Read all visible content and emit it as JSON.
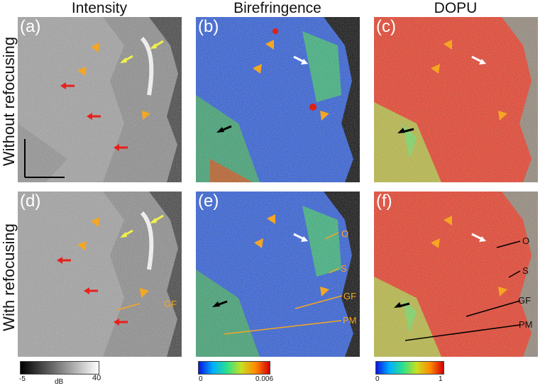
{
  "columns": [
    "Intensity",
    "Birefringence",
    "DOPU"
  ],
  "rows": [
    "Without refocusing",
    "With refocusing"
  ],
  "panels": [
    "(a)",
    "(b)",
    "(c)",
    "(d)",
    "(e)",
    "(f)"
  ],
  "annotations": {
    "o": "O",
    "s": "S",
    "gf": "GF",
    "pm": "PM"
  },
  "colorbars": {
    "intensity": {
      "min": "-5",
      "unit": "dB",
      "max": "40"
    },
    "birefringence": {
      "min": "0",
      "max": "0.006"
    },
    "dopu": {
      "min": "0",
      "max": "1"
    }
  },
  "colors": {
    "arrowhead": "#f5a623",
    "yellow_arrow": "#f2f24a",
    "red_arrow": "#e8201c",
    "annotation": "#f5a623"
  }
}
